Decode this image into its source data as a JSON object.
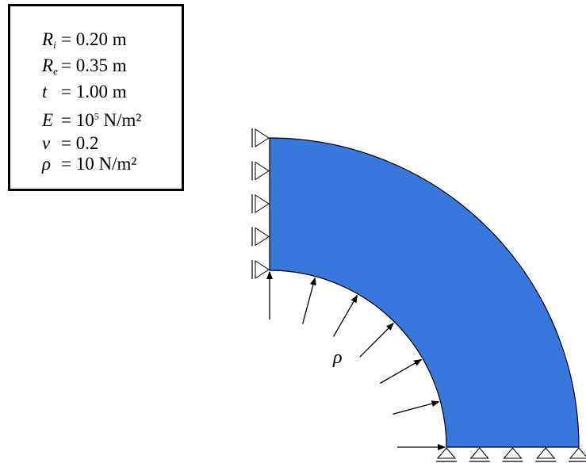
{
  "parameters": [
    {
      "symbol": "R",
      "subscript": "i",
      "value": "= 0.20 m"
    },
    {
      "symbol": "R",
      "subscript": "e",
      "value": "= 0.35 m"
    },
    {
      "symbol": "t",
      "subscript": "",
      "value": "= 1.00 m"
    },
    {
      "symbol": "E",
      "subscript": "",
      "value_prefix": "= 10",
      "exponent": "5",
      "value_suffix": " N/m²"
    },
    {
      "symbol": "v",
      "subscript": "",
      "value": "= 0.2"
    },
    {
      "symbol": "ρ",
      "subscript": "",
      "value": "= 10 N/m²"
    }
  ],
  "load_label": "ρ",
  "colors": {
    "section_fill": "#3878dc",
    "outline": "#000000",
    "background": "#ffffff"
  },
  "supports": {
    "left_edge": {
      "type": "roller-triangle",
      "count": 5
    },
    "bottom_edge": {
      "type": "roller-triangle",
      "count": 5
    }
  },
  "pressure_arrows": {
    "count": 7,
    "direction": "radial-outward"
  }
}
